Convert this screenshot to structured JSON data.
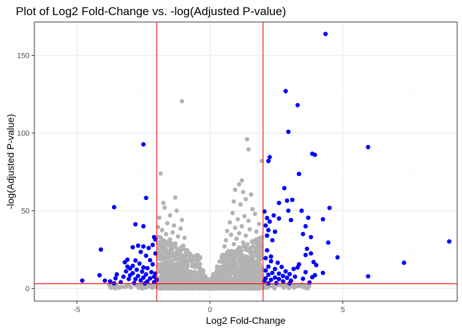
{
  "chart_data": {
    "type": "scatter",
    "title": "Plot of Log2 Fold-Change vs. -log(Adjusted P-value)",
    "xlabel": "Log2 Fold-Change",
    "ylabel": "-log(Adjusted P-value)",
    "xlim": [
      -6.6,
      9.3
    ],
    "ylim": [
      -8.2,
      171.5
    ],
    "x_ticks": [
      -5,
      0,
      5
    ],
    "x_tick_labels": [
      "-5",
      "0",
      "5"
    ],
    "y_ticks": [
      0,
      50,
      100,
      150
    ],
    "y_tick_labels": [
      "0",
      "50",
      "100",
      "150"
    ],
    "grid": true,
    "legend": "none",
    "thresholds": {
      "log2fc": [
        -2,
        2
      ],
      "neg_log_padj": 3
    },
    "colors": {
      "significant": "#0000ff",
      "not_significant": "#b3b3b3",
      "threshold_line": "#ff0000",
      "panel_border": "#333333",
      "grid_major": "#ebebeb",
      "grid_minor": "#f5f5f5"
    },
    "series": [
      {
        "color": "#0000ff",
        "points": [
          [
            4.35,
            163.8
          ],
          [
            2.85,
            127.0
          ],
          [
            3.3,
            118.0
          ],
          [
            2.95,
            100.8
          ],
          [
            -2.5,
            92.7
          ],
          [
            5.95,
            91.0
          ],
          [
            3.85,
            86.7
          ],
          [
            3.95,
            86.0
          ],
          [
            2.25,
            84.5
          ],
          [
            2.2,
            82.0
          ],
          [
            3.35,
            73.7
          ],
          [
            2.8,
            64.5
          ],
          [
            -2.4,
            58.3
          ],
          [
            2.9,
            56.5
          ],
          [
            2.6,
            55.0
          ],
          [
            3.1,
            57.0
          ],
          [
            -3.6,
            52.3
          ],
          [
            4.5,
            51.8
          ],
          [
            2.95,
            50.0
          ],
          [
            3.45,
            50.0
          ],
          [
            2.05,
            49.5
          ],
          [
            2.4,
            47.0
          ],
          [
            2.15,
            45.3
          ],
          [
            3.7,
            45.5
          ],
          [
            2.6,
            45.0
          ],
          [
            3.05,
            44.0
          ],
          [
            4.25,
            44.5
          ],
          [
            2.25,
            43.0
          ],
          [
            -2.8,
            41.3
          ],
          [
            -2.5,
            40.0
          ],
          [
            2.1,
            40.5
          ],
          [
            3.6,
            40.0
          ],
          [
            2.2,
            37.5
          ],
          [
            2.45,
            36.5
          ],
          [
            3.5,
            35.0
          ],
          [
            2.15,
            34.0
          ],
          [
            -2.1,
            33.0
          ],
          [
            3.8,
            33.0
          ],
          [
            -2.05,
            31.5
          ],
          [
            2.35,
            31.0
          ],
          [
            4.45,
            29.5
          ],
          [
            -2.15,
            28.0
          ],
          [
            -2.7,
            27.5
          ],
          [
            -2.5,
            27.0
          ],
          [
            -2.9,
            26.5
          ],
          [
            3.65,
            25.5
          ],
          [
            -2.3,
            26.0
          ],
          [
            -4.1,
            25.0
          ],
          [
            2.15,
            24.5
          ],
          [
            -2.6,
            23.5
          ],
          [
            3.8,
            22.5
          ],
          [
            -2.05,
            22.5
          ],
          [
            3.6,
            21.5
          ],
          [
            -2.4,
            21.0
          ],
          [
            2.3,
            20.5
          ],
          [
            4.8,
            20.0
          ],
          [
            2.1,
            19.5
          ],
          [
            -3.1,
            18.5
          ],
          [
            -2.8,
            18.0
          ],
          [
            -2.25,
            18.2
          ],
          [
            3.9,
            17.0
          ],
          [
            7.3,
            16.5
          ],
          [
            2.3,
            17.5
          ],
          [
            -3.2,
            16.8
          ],
          [
            2.55,
            16.5
          ],
          [
            -2.65,
            16.0
          ],
          [
            3.35,
            15.5
          ],
          [
            -2.15,
            15.5
          ],
          [
            4.0,
            15.0
          ],
          [
            -2.9,
            14.5
          ],
          [
            -3.1,
            14.0
          ],
          [
            2.2,
            14.0
          ],
          [
            2.7,
            13.8
          ],
          [
            -2.5,
            13.5
          ],
          [
            3.3,
            13.5
          ],
          [
            -2.35,
            13.0
          ],
          [
            -3.0,
            12.8
          ],
          [
            2.45,
            12.5
          ],
          [
            3.15,
            12.5
          ],
          [
            -2.75,
            12.0
          ],
          [
            2.1,
            11.5
          ],
          [
            -3.15,
            11.0
          ],
          [
            2.85,
            11.0
          ],
          [
            -2.55,
            10.8
          ],
          [
            3.6,
            10.5
          ],
          [
            -2.2,
            10.5
          ],
          [
            2.35,
            10.0
          ],
          [
            4.25,
            10.0
          ],
          [
            -2.9,
            9.8
          ],
          [
            -2.05,
            9.5
          ],
          [
            2.6,
            9.5
          ],
          [
            -3.5,
            9.0
          ],
          [
            3.0,
            9.2
          ],
          [
            -2.4,
            9.0
          ],
          [
            2.2,
            8.8
          ],
          [
            -3.0,
            8.5
          ],
          [
            -4.15,
            8.5
          ],
          [
            3.95,
            8.5
          ],
          [
            2.75,
            8.0
          ],
          [
            5.95,
            7.8
          ],
          [
            -2.7,
            8.0
          ],
          [
            -3.25,
            7.5
          ],
          [
            -2.1,
            7.5
          ],
          [
            3.2,
            7.5
          ],
          [
            3.85,
            7.2
          ],
          [
            2.45,
            7.0
          ],
          [
            -2.5,
            7.0
          ],
          [
            -3.55,
            6.5
          ],
          [
            2.9,
            6.8
          ],
          [
            -2.25,
            6.5
          ],
          [
            2.1,
            6.5
          ],
          [
            3.5,
            6.2
          ],
          [
            -3.05,
            6.0
          ],
          [
            -2.8,
            6.0
          ],
          [
            2.6,
            6.0
          ],
          [
            -3.95,
            5.0
          ],
          [
            -2.0,
            5.5
          ],
          [
            2.3,
            5.5
          ],
          [
            -2.6,
            5.2
          ],
          [
            3.05,
            5.0
          ],
          [
            -4.8,
            5.0
          ],
          [
            -3.75,
            4.5
          ],
          [
            -2.35,
            4.5
          ],
          [
            2.05,
            4.8
          ],
          [
            2.75,
            4.5
          ],
          [
            -3.35,
            4.0
          ],
          [
            -2.1,
            4.0
          ],
          [
            3.75,
            3.8
          ],
          [
            -2.85,
            3.5
          ],
          [
            2.5,
            3.5
          ],
          [
            -2.45,
            3.2
          ],
          [
            3.0,
            3.2
          ],
          [
            -3.6,
            3.2
          ],
          [
            2.2,
            3.2
          ],
          [
            9.0,
            30.2
          ]
        ]
      },
      {
        "color": "#b3b3b3",
        "points": [
          [
            -1.05,
            120.5
          ],
          [
            1.4,
            96.0
          ],
          [
            1.45,
            89.5
          ],
          [
            1.95,
            82.0
          ],
          [
            -1.85,
            74.0
          ],
          [
            1.2,
            69.5
          ],
          [
            1.1,
            67.0
          ],
          [
            0.95,
            63.5
          ],
          [
            1.25,
            62.0
          ],
          [
            1.55,
            60.5
          ],
          [
            -1.3,
            58.5
          ],
          [
            1.35,
            57.5
          ],
          [
            0.9,
            56.0
          ],
          [
            -1.75,
            55.0
          ],
          [
            1.15,
            54.0
          ],
          [
            -1.7,
            52.0
          ],
          [
            1.6,
            51.0
          ],
          [
            -1.25,
            50.0
          ],
          [
            0.85,
            48.5
          ],
          [
            1.7,
            48.0
          ],
          [
            -1.5,
            47.0
          ],
          [
            1.3,
            46.5
          ],
          [
            -1.9,
            45.5
          ],
          [
            1.05,
            44.5
          ],
          [
            -1.05,
            44.0
          ],
          [
            1.45,
            43.5
          ],
          [
            0.75,
            42.5
          ],
          [
            -1.6,
            42.0
          ],
          [
            1.85,
            41.5
          ],
          [
            -1.35,
            40.5
          ],
          [
            1.2,
            40.0
          ],
          [
            -1.95,
            39.5
          ],
          [
            0.95,
            39.0
          ],
          [
            -1.1,
            38.5
          ],
          [
            1.5,
            38.0
          ],
          [
            -1.8,
            37.5
          ],
          [
            0.65,
            37.0
          ],
          [
            1.75,
            36.5
          ],
          [
            -1.4,
            36.0
          ],
          [
            1.1,
            35.5
          ],
          [
            -1.65,
            35.0
          ],
          [
            0.8,
            34.5
          ],
          [
            1.35,
            34.0
          ],
          [
            -1.2,
            33.5
          ],
          [
            1.95,
            33.0
          ],
          [
            -0.95,
            32.5
          ],
          [
            1.0,
            32.0
          ],
          [
            -1.5,
            31.5
          ],
          [
            0.6,
            31.0
          ],
          [
            1.6,
            30.5
          ],
          [
            -1.75,
            30.0
          ],
          [
            1.25,
            29.5
          ],
          [
            -1.3,
            29.0
          ],
          [
            0.9,
            28.5
          ],
          [
            1.8,
            28.0
          ],
          [
            -1.0,
            27.5
          ],
          [
            0.55,
            27.0
          ],
          [
            -1.85,
            26.5
          ],
          [
            1.4,
            26.0
          ],
          [
            -1.45,
            25.5
          ],
          [
            1.05,
            25.0
          ],
          [
            -0.85,
            24.5
          ],
          [
            0.7,
            24.0
          ],
          [
            1.65,
            23.5
          ],
          [
            -1.6,
            23.0
          ],
          [
            1.15,
            22.5
          ],
          [
            -1.15,
            22.0
          ],
          [
            0.5,
            21.5
          ],
          [
            1.9,
            21.0
          ],
          [
            -1.95,
            20.5
          ],
          [
            0.85,
            20.0
          ],
          [
            -0.75,
            19.5
          ],
          [
            1.3,
            19.0
          ],
          [
            -1.35,
            18.5
          ],
          [
            0.45,
            18.0
          ],
          [
            1.55,
            17.5
          ],
          [
            -1.05,
            17.0
          ],
          [
            0.95,
            16.5
          ],
          [
            -1.7,
            16.0
          ],
          [
            1.7,
            15.5
          ],
          [
            -0.65,
            15.0
          ],
          [
            0.6,
            14.5
          ],
          [
            -1.25,
            14.0
          ],
          [
            1.2,
            13.5
          ],
          [
            -0.9,
            13.0
          ],
          [
            0.4,
            12.5
          ],
          [
            1.45,
            12.0
          ],
          [
            -1.55,
            11.5
          ],
          [
            0.75,
            11.0
          ],
          [
            -0.55,
            10.5
          ],
          [
            1.0,
            10.0
          ],
          [
            -1.15,
            9.5
          ],
          [
            0.35,
            9.0
          ],
          [
            1.85,
            8.5
          ],
          [
            -1.8,
            8.0
          ],
          [
            0.65,
            7.5
          ],
          [
            -0.45,
            7.0
          ],
          [
            1.35,
            6.5
          ],
          [
            -1.4,
            6.0
          ],
          [
            0.3,
            5.5
          ],
          [
            -0.95,
            5.0
          ],
          [
            0.9,
            4.5
          ],
          [
            -0.35,
            4.0
          ],
          [
            1.6,
            3.5
          ],
          [
            -1.65,
            3.0
          ],
          [
            0.25,
            2.5
          ],
          [
            -0.6,
            2.0
          ],
          [
            0.55,
            1.5
          ],
          [
            -0.25,
            1.0
          ],
          [
            0.15,
            0.5
          ],
          [
            -0.1,
            0.2
          ],
          [
            0.05,
            0.1
          ],
          [
            -2.55,
            2.5
          ],
          [
            2.6,
            2.2
          ],
          [
            -3.6,
            1.5
          ],
          [
            3.4,
            1.8
          ],
          [
            -1.9,
            12.5
          ],
          [
            1.9,
            14.0
          ],
          [
            -1.45,
            21.0
          ],
          [
            1.5,
            24.0
          ]
        ]
      }
    ]
  }
}
